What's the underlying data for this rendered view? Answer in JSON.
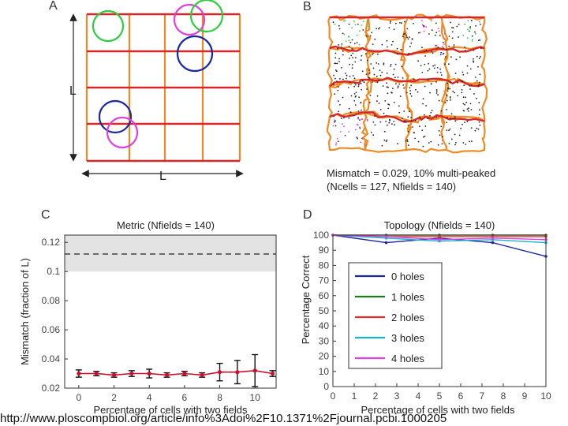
{
  "panel_a": {
    "letter": "A",
    "dim_label_vertical": "L",
    "dim_label_horizontal": "L",
    "colors": {
      "grid_horizontal": "#d62828",
      "grid_vertical": "#f08a24",
      "field_green": "#2ecc40",
      "field_magenta": "#e040e0",
      "field_blue": "#1a2a9e",
      "arrow": "#222222"
    }
  },
  "panel_b": {
    "letter": "B",
    "annotation_line1": "Mismatch = 0.029, 10% multi-peaked",
    "annotation_line2": "(Ncells = 127, Nfields = 140)",
    "colors": {
      "border_red": "#d62828",
      "border_orange": "#f08a24",
      "dots": "#222222",
      "green": "#2ecc40",
      "magenta": "#e040e0",
      "blue": "#1a2a9e"
    }
  },
  "chart_data": [
    {
      "type": "line",
      "panel": "C",
      "title": "Metric (Nfields = 140)",
      "xlabel": "Percentage of cells with two fields",
      "ylabel": "Mismatch (fraction of L)",
      "xlim": [
        -0.8,
        11.2
      ],
      "ylim": [
        0.02,
        0.125
      ],
      "xticks": [
        "0",
        "2",
        "4",
        "6",
        "8",
        "10"
      ],
      "yticks": [
        "0.02",
        "0.04",
        "0.06",
        "0.08",
        "0.1",
        "0.12"
      ],
      "band": {
        "low": 0.1,
        "high": 0.125,
        "dashed_line": 0.112
      },
      "series": [
        {
          "color": "#c8102e",
          "x": [
            0,
            1,
            2,
            3,
            4,
            5,
            6,
            7,
            8,
            9,
            10,
            11
          ],
          "y": [
            0.03,
            0.03,
            0.029,
            0.03,
            0.03,
            0.029,
            0.03,
            0.029,
            0.031,
            0.031,
            0.032,
            0.03
          ],
          "err": [
            0.0025,
            0.0015,
            0.0015,
            0.002,
            0.003,
            0.0015,
            0.0015,
            0.0015,
            0.006,
            0.008,
            0.011,
            0.002
          ]
        }
      ]
    },
    {
      "type": "line",
      "panel": "D",
      "title": "Topology (Nfields = 140)",
      "xlabel": "Percentage of cells with two fields",
      "ylabel": "Percentage Correct",
      "xlim": [
        0,
        10
      ],
      "ylim": [
        0,
        100
      ],
      "xticks": [
        "0",
        "1",
        "2",
        "3",
        "4",
        "5",
        "6",
        "7",
        "8",
        "9",
        "10"
      ],
      "yticks": [
        "0",
        "10",
        "20",
        "30",
        "40",
        "50",
        "60",
        "70",
        "80",
        "90",
        "100"
      ],
      "legend_position": "center-left",
      "series": [
        {
          "name": "0 holes",
          "color": "#1a2a9e",
          "x": [
            0,
            2.5,
            5,
            7.5,
            10
          ],
          "y": [
            100,
            95,
            98,
            95,
            86
          ]
        },
        {
          "name": "1 holes",
          "color": "#1f7a1f",
          "x": [
            0,
            2.5,
            5,
            7.5,
            10
          ],
          "y": [
            100,
            100,
            100,
            100,
            100
          ]
        },
        {
          "name": "2 holes",
          "color": "#e0302a",
          "x": [
            0,
            2.5,
            5,
            7.5,
            10
          ],
          "y": [
            100,
            99,
            99,
            99,
            99
          ]
        },
        {
          "name": "3 holes",
          "color": "#18b4c8",
          "x": [
            0,
            2.5,
            5,
            7.5,
            10
          ],
          "y": [
            100,
            98,
            96,
            97,
            95
          ]
        },
        {
          "name": "4 holes",
          "color": "#e040e0",
          "x": [
            0,
            2.5,
            5,
            7.5,
            10
          ],
          "y": [
            100,
            99,
            97,
            98,
            97
          ]
        }
      ]
    }
  ],
  "caption": "http://www.ploscompbiol.org/article/info%3Adoi%2F10.1371%2Fjournal.pcbi.1000205"
}
